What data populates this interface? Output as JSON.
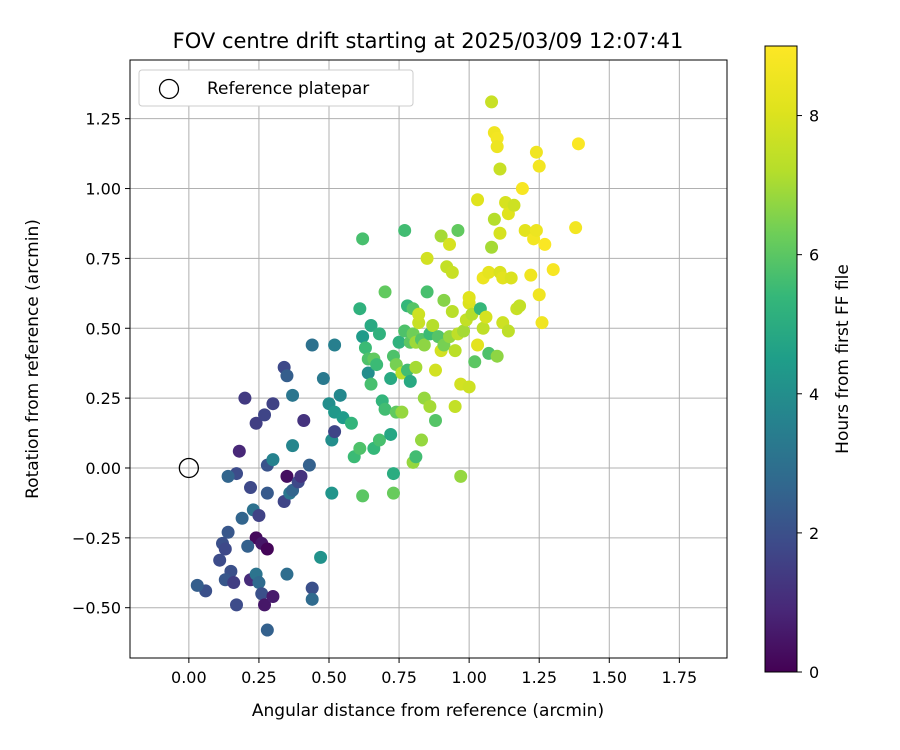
{
  "chart_data": {
    "type": "scatter",
    "title": "FOV centre drift starting at 2025/03/09 12:07:41",
    "xlabel": "Angular distance from reference (arcmin)",
    "ylabel": "Rotation from reference (arcmin)",
    "xlim": [
      -0.21,
      1.92
    ],
    "ylim": [
      -0.68,
      1.46
    ],
    "xticks": [
      0.0,
      0.25,
      0.5,
      0.75,
      1.0,
      1.25,
      1.5,
      1.75
    ],
    "xtick_labels": [
      "0.00",
      "0.25",
      "0.50",
      "0.75",
      "1.00",
      "1.25",
      "1.50",
      "1.75"
    ],
    "yticks": [
      -0.5,
      -0.25,
      0.0,
      0.25,
      0.5,
      0.75,
      1.0,
      1.25
    ],
    "ytick_labels": [
      "−0.50",
      "−0.25",
      "0.00",
      "0.25",
      "0.50",
      "0.75",
      "1.00",
      "1.25"
    ],
    "grid": true,
    "legend": {
      "position": "top-left",
      "entries": [
        "Reference platepar"
      ]
    },
    "reference_point": {
      "x": 0.0,
      "y": 0.0,
      "label": "Reference platepar",
      "marker": "open-circle"
    },
    "colorbar": {
      "label": "Hours from first FF file",
      "colormap": "viridis",
      "range": [
        0,
        9
      ],
      "ticks": [
        0,
        2,
        4,
        6,
        8
      ],
      "tick_labels": [
        "0",
        "2",
        "4",
        "6",
        "8"
      ]
    },
    "points": [
      {
        "x": 0.2,
        "y": 0.25,
        "t": 1.4
      },
      {
        "x": 0.18,
        "y": 0.06,
        "t": 0.9
      },
      {
        "x": 0.24,
        "y": 0.16,
        "t": 1.5
      },
      {
        "x": 0.27,
        "y": 0.19,
        "t": 1.7
      },
      {
        "x": 0.3,
        "y": 0.23,
        "t": 1.6
      },
      {
        "x": 0.34,
        "y": 0.36,
        "t": 1.8
      },
      {
        "x": 0.35,
        "y": 0.33,
        "t": 2.4
      },
      {
        "x": 0.37,
        "y": 0.26,
        "t": 3.2
      },
      {
        "x": 0.17,
        "y": -0.02,
        "t": 1.9
      },
      {
        "x": 0.14,
        "y": -0.03,
        "t": 2.6
      },
      {
        "x": 0.22,
        "y": -0.07,
        "t": 1.8
      },
      {
        "x": 0.28,
        "y": 0.01,
        "t": 2.1
      },
      {
        "x": 0.3,
        "y": 0.03,
        "t": 3.6
      },
      {
        "x": 0.28,
        "y": -0.09,
        "t": 2.3
      },
      {
        "x": 0.35,
        "y": -0.03,
        "t": 0.3
      },
      {
        "x": 0.34,
        "y": -0.12,
        "t": 1.7
      },
      {
        "x": 0.36,
        "y": -0.09,
        "t": 3.2
      },
      {
        "x": 0.37,
        "y": -0.08,
        "t": 2.6
      },
      {
        "x": 0.39,
        "y": -0.05,
        "t": 1.8
      },
      {
        "x": 0.4,
        "y": -0.03,
        "t": 1.2
      },
      {
        "x": 0.37,
        "y": 0.08,
        "t": 3.7
      },
      {
        "x": 0.41,
        "y": 0.17,
        "t": 1.2
      },
      {
        "x": 0.43,
        "y": 0.01,
        "t": 2.5
      },
      {
        "x": 0.44,
        "y": 0.44,
        "t": 3.0
      },
      {
        "x": 0.48,
        "y": 0.32,
        "t": 3.3
      },
      {
        "x": 0.52,
        "y": 0.44,
        "t": 3.5
      },
      {
        "x": 0.19,
        "y": -0.18,
        "t": 2.6
      },
      {
        "x": 0.23,
        "y": -0.15,
        "t": 3.0
      },
      {
        "x": 0.25,
        "y": -0.17,
        "t": 1.6
      },
      {
        "x": 0.24,
        "y": -0.25,
        "t": 0.2
      },
      {
        "x": 0.26,
        "y": -0.27,
        "t": 0.5
      },
      {
        "x": 0.28,
        "y": -0.29,
        "t": 0.1
      },
      {
        "x": 0.14,
        "y": -0.23,
        "t": 2.2
      },
      {
        "x": 0.12,
        "y": -0.27,
        "t": 2.0
      },
      {
        "x": 0.13,
        "y": -0.29,
        "t": 1.8
      },
      {
        "x": 0.11,
        "y": -0.33,
        "t": 1.9
      },
      {
        "x": 0.15,
        "y": -0.37,
        "t": 2.0
      },
      {
        "x": 0.13,
        "y": -0.4,
        "t": 2.2
      },
      {
        "x": 0.16,
        "y": -0.41,
        "t": 1.5
      },
      {
        "x": 0.06,
        "y": -0.44,
        "t": 2.0
      },
      {
        "x": 0.03,
        "y": -0.42,
        "t": 2.4
      },
      {
        "x": 0.17,
        "y": -0.49,
        "t": 1.9
      },
      {
        "x": 0.21,
        "y": -0.28,
        "t": 2.5
      },
      {
        "x": 0.22,
        "y": -0.4,
        "t": 1.0
      },
      {
        "x": 0.24,
        "y": -0.38,
        "t": 3.1
      },
      {
        "x": 0.25,
        "y": -0.41,
        "t": 2.8
      },
      {
        "x": 0.26,
        "y": -0.45,
        "t": 2.0
      },
      {
        "x": 0.27,
        "y": -0.49,
        "t": 0.5
      },
      {
        "x": 0.3,
        "y": -0.46,
        "t": 0.6
      },
      {
        "x": 0.28,
        "y": -0.58,
        "t": 2.5
      },
      {
        "x": 0.35,
        "y": -0.38,
        "t": 2.9
      },
      {
        "x": 0.44,
        "y": -0.43,
        "t": 2.0
      },
      {
        "x": 0.44,
        "y": -0.47,
        "t": 2.8
      },
      {
        "x": 0.47,
        "y": -0.32,
        "t": 4.1
      },
      {
        "x": 0.51,
        "y": -0.09,
        "t": 4.2
      },
      {
        "x": 0.51,
        "y": 0.1,
        "t": 4.0
      },
      {
        "x": 0.52,
        "y": 0.13,
        "t": 1.7
      },
      {
        "x": 0.5,
        "y": 0.23,
        "t": 4.0
      },
      {
        "x": 0.52,
        "y": 0.2,
        "t": 4.3
      },
      {
        "x": 0.54,
        "y": 0.26,
        "t": 3.8
      },
      {
        "x": 0.55,
        "y": 0.18,
        "t": 4.4
      },
      {
        "x": 0.58,
        "y": 0.16,
        "t": 5.3
      },
      {
        "x": 0.59,
        "y": 0.04,
        "t": 5.5
      },
      {
        "x": 0.61,
        "y": 0.07,
        "t": 5.8
      },
      {
        "x": 0.62,
        "y": -0.1,
        "t": 6.0
      },
      {
        "x": 0.61,
        "y": 0.57,
        "t": 5.2
      },
      {
        "x": 0.62,
        "y": 0.47,
        "t": 4.4
      },
      {
        "x": 0.63,
        "y": 0.43,
        "t": 5.5
      },
      {
        "x": 0.62,
        "y": 0.82,
        "t": 5.7
      },
      {
        "x": 0.64,
        "y": 0.34,
        "t": 4.0
      },
      {
        "x": 0.64,
        "y": 0.39,
        "t": 5.8
      },
      {
        "x": 0.65,
        "y": 0.3,
        "t": 5.7
      },
      {
        "x": 0.65,
        "y": 0.51,
        "t": 4.9
      },
      {
        "x": 0.66,
        "y": 0.39,
        "t": 6.1
      },
      {
        "x": 0.66,
        "y": 0.07,
        "t": 5.4
      },
      {
        "x": 0.67,
        "y": 0.37,
        "t": 5.5
      },
      {
        "x": 0.68,
        "y": 0.48,
        "t": 5.2
      },
      {
        "x": 0.68,
        "y": 0.1,
        "t": 5.7
      },
      {
        "x": 0.69,
        "y": 0.24,
        "t": 5.3
      },
      {
        "x": 0.7,
        "y": 0.21,
        "t": 5.6
      },
      {
        "x": 0.7,
        "y": 0.63,
        "t": 6.1
      },
      {
        "x": 0.72,
        "y": 0.12,
        "t": 4.8
      },
      {
        "x": 0.72,
        "y": 0.32,
        "t": 4.9
      },
      {
        "x": 0.73,
        "y": 0.4,
        "t": 5.8
      },
      {
        "x": 0.73,
        "y": -0.02,
        "t": 5.0
      },
      {
        "x": 0.73,
        "y": -0.09,
        "t": 6.2
      },
      {
        "x": 0.74,
        "y": 0.37,
        "t": 6.4
      },
      {
        "x": 0.74,
        "y": 0.2,
        "t": 6.1
      },
      {
        "x": 0.75,
        "y": 0.45,
        "t": 5.2
      },
      {
        "x": 0.76,
        "y": 0.2,
        "t": 6.8
      },
      {
        "x": 0.76,
        "y": 0.34,
        "t": 7.3
      },
      {
        "x": 0.77,
        "y": 0.49,
        "t": 5.8
      },
      {
        "x": 0.77,
        "y": 0.85,
        "t": 5.6
      },
      {
        "x": 0.78,
        "y": 0.58,
        "t": 5.4
      },
      {
        "x": 0.78,
        "y": 0.35,
        "t": 5.6
      },
      {
        "x": 0.79,
        "y": 0.31,
        "t": 4.9
      },
      {
        "x": 0.79,
        "y": 0.45,
        "t": 6.0
      },
      {
        "x": 0.8,
        "y": 0.57,
        "t": 5.9
      },
      {
        "x": 0.8,
        "y": 0.02,
        "t": 6.8
      },
      {
        "x": 0.8,
        "y": 0.48,
        "t": 6.3
      },
      {
        "x": 0.81,
        "y": 0.04,
        "t": 5.6
      },
      {
        "x": 0.81,
        "y": 0.45,
        "t": 6.9
      },
      {
        "x": 0.81,
        "y": 0.36,
        "t": 7.0
      },
      {
        "x": 0.82,
        "y": 0.52,
        "t": 7.6
      },
      {
        "x": 0.82,
        "y": 0.55,
        "t": 7.7
      },
      {
        "x": 0.83,
        "y": 0.1,
        "t": 6.8
      },
      {
        "x": 0.83,
        "y": 0.46,
        "t": 5.9
      },
      {
        "x": 0.84,
        "y": 0.44,
        "t": 6.7
      },
      {
        "x": 0.84,
        "y": 0.25,
        "t": 6.8
      },
      {
        "x": 0.85,
        "y": 0.75,
        "t": 7.8
      },
      {
        "x": 0.85,
        "y": 0.63,
        "t": 5.7
      },
      {
        "x": 0.86,
        "y": 0.22,
        "t": 7.0
      },
      {
        "x": 0.86,
        "y": 0.48,
        "t": 5.5
      },
      {
        "x": 0.87,
        "y": 0.51,
        "t": 7.2
      },
      {
        "x": 0.88,
        "y": 0.35,
        "t": 7.8
      },
      {
        "x": 0.88,
        "y": 0.17,
        "t": 5.9
      },
      {
        "x": 0.89,
        "y": 0.47,
        "t": 5.9
      },
      {
        "x": 0.9,
        "y": 0.83,
        "t": 7.0
      },
      {
        "x": 0.9,
        "y": 0.42,
        "t": 7.8
      },
      {
        "x": 0.91,
        "y": 0.6,
        "t": 6.6
      },
      {
        "x": 0.91,
        "y": 0.44,
        "t": 6.4
      },
      {
        "x": 0.92,
        "y": 0.72,
        "t": 7.5
      },
      {
        "x": 0.93,
        "y": 0.8,
        "t": 7.9
      },
      {
        "x": 0.93,
        "y": 0.47,
        "t": 6.8
      },
      {
        "x": 0.94,
        "y": 0.56,
        "t": 7.3
      },
      {
        "x": 0.94,
        "y": 0.7,
        "t": 7.6
      },
      {
        "x": 0.95,
        "y": 0.42,
        "t": 7.3
      },
      {
        "x": 0.95,
        "y": 0.22,
        "t": 7.5
      },
      {
        "x": 0.96,
        "y": 0.85,
        "t": 6.1
      },
      {
        "x": 0.96,
        "y": 0.48,
        "t": 7.4
      },
      {
        "x": 0.97,
        "y": -0.03,
        "t": 6.8
      },
      {
        "x": 0.97,
        "y": 0.3,
        "t": 7.8
      },
      {
        "x": 0.98,
        "y": 0.49,
        "t": 7.0
      },
      {
        "x": 0.99,
        "y": 0.53,
        "t": 7.5
      },
      {
        "x": 1.0,
        "y": 0.59,
        "t": 8.0
      },
      {
        "x": 1.0,
        "y": 0.61,
        "t": 8.1
      },
      {
        "x": 1.0,
        "y": 0.29,
        "t": 7.7
      },
      {
        "x": 1.01,
        "y": 0.55,
        "t": 7.2
      },
      {
        "x": 1.02,
        "y": 0.38,
        "t": 6.0
      },
      {
        "x": 1.03,
        "y": 0.96,
        "t": 8.1
      },
      {
        "x": 1.03,
        "y": 0.44,
        "t": 8.2
      },
      {
        "x": 1.04,
        "y": 0.57,
        "t": 5.4
      },
      {
        "x": 1.05,
        "y": 0.5,
        "t": 7.4
      },
      {
        "x": 1.05,
        "y": 0.68,
        "t": 8.5
      },
      {
        "x": 1.06,
        "y": 0.54,
        "t": 7.9
      },
      {
        "x": 1.07,
        "y": 0.7,
        "t": 8.3
      },
      {
        "x": 1.07,
        "y": 0.41,
        "t": 5.8
      },
      {
        "x": 1.08,
        "y": 1.31,
        "t": 7.6
      },
      {
        "x": 1.08,
        "y": 0.79,
        "t": 7.0
      },
      {
        "x": 1.09,
        "y": 0.89,
        "t": 7.2
      },
      {
        "x": 1.09,
        "y": 1.2,
        "t": 8.6
      },
      {
        "x": 1.1,
        "y": 1.18,
        "t": 8.7
      },
      {
        "x": 1.1,
        "y": 1.15,
        "t": 8.5
      },
      {
        "x": 1.1,
        "y": 0.4,
        "t": 6.7
      },
      {
        "x": 1.11,
        "y": 0.7,
        "t": 8.0
      },
      {
        "x": 1.11,
        "y": 0.84,
        "t": 7.9
      },
      {
        "x": 1.11,
        "y": 1.07,
        "t": 7.6
      },
      {
        "x": 1.12,
        "y": 0.68,
        "t": 8.2
      },
      {
        "x": 1.12,
        "y": 0.52,
        "t": 7.7
      },
      {
        "x": 1.13,
        "y": 0.95,
        "t": 7.9
      },
      {
        "x": 1.14,
        "y": 0.91,
        "t": 8.1
      },
      {
        "x": 1.14,
        "y": 0.49,
        "t": 7.4
      },
      {
        "x": 1.15,
        "y": 0.68,
        "t": 8.0
      },
      {
        "x": 1.16,
        "y": 0.94,
        "t": 7.7
      },
      {
        "x": 1.17,
        "y": 0.57,
        "t": 7.6
      },
      {
        "x": 1.18,
        "y": 0.58,
        "t": 7.5
      },
      {
        "x": 1.19,
        "y": 1.0,
        "t": 8.8
      },
      {
        "x": 1.2,
        "y": 0.85,
        "t": 8.2
      },
      {
        "x": 1.22,
        "y": 0.69,
        "t": 8.6
      },
      {
        "x": 1.23,
        "y": 0.82,
        "t": 8.7
      },
      {
        "x": 1.24,
        "y": 0.85,
        "t": 8.5
      },
      {
        "x": 1.24,
        "y": 1.13,
        "t": 8.6
      },
      {
        "x": 1.25,
        "y": 1.08,
        "t": 8.7
      },
      {
        "x": 1.25,
        "y": 0.62,
        "t": 8.6
      },
      {
        "x": 1.26,
        "y": 0.52,
        "t": 8.6
      },
      {
        "x": 1.27,
        "y": 0.8,
        "t": 8.9
      },
      {
        "x": 1.3,
        "y": 0.71,
        "t": 8.8
      },
      {
        "x": 1.38,
        "y": 0.86,
        "t": 8.7
      },
      {
        "x": 1.39,
        "y": 1.16,
        "t": 8.9
      }
    ]
  }
}
